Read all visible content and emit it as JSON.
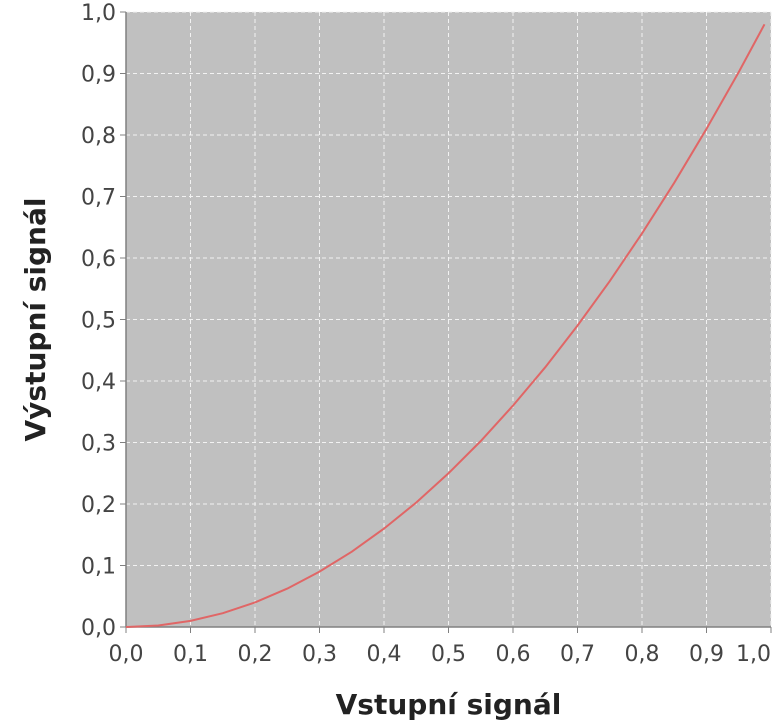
{
  "chart_data": {
    "type": "line",
    "title": "",
    "xlabel": "Vstupní signál",
    "ylabel": "Výstupní signál",
    "xlim": [
      0.0,
      1.0
    ],
    "ylim": [
      0.0,
      1.0
    ],
    "x_ticks": [
      "0,0",
      "0,1",
      "0,2",
      "0,3",
      "0,4",
      "0,5",
      "0,6",
      "0,7",
      "0,8",
      "0,9",
      "1,0"
    ],
    "y_ticks": [
      "0,0",
      "0,1",
      "0,2",
      "0,3",
      "0,4",
      "0,5",
      "0,6",
      "0,7",
      "0,8",
      "0,9",
      "1,0"
    ],
    "grid": true,
    "legend": "none",
    "colors": {
      "plot_background": "#c0c0c0",
      "grid": "#f2f2f2",
      "line": "#e06666",
      "axis": "#808080"
    },
    "series": [
      {
        "x": [
          0.0,
          0.05,
          0.1,
          0.15,
          0.2,
          0.25,
          0.3,
          0.35,
          0.4,
          0.45,
          0.5,
          0.55,
          0.6,
          0.65,
          0.7,
          0.75,
          0.8,
          0.85,
          0.9,
          0.95,
          0.99
        ],
        "values": [
          0.0,
          0.0025,
          0.01,
          0.0225,
          0.04,
          0.0625,
          0.09,
          0.1225,
          0.16,
          0.2025,
          0.25,
          0.3025,
          0.36,
          0.4225,
          0.49,
          0.5625,
          0.64,
          0.7225,
          0.81,
          0.9025,
          0.98
        ]
      }
    ]
  }
}
